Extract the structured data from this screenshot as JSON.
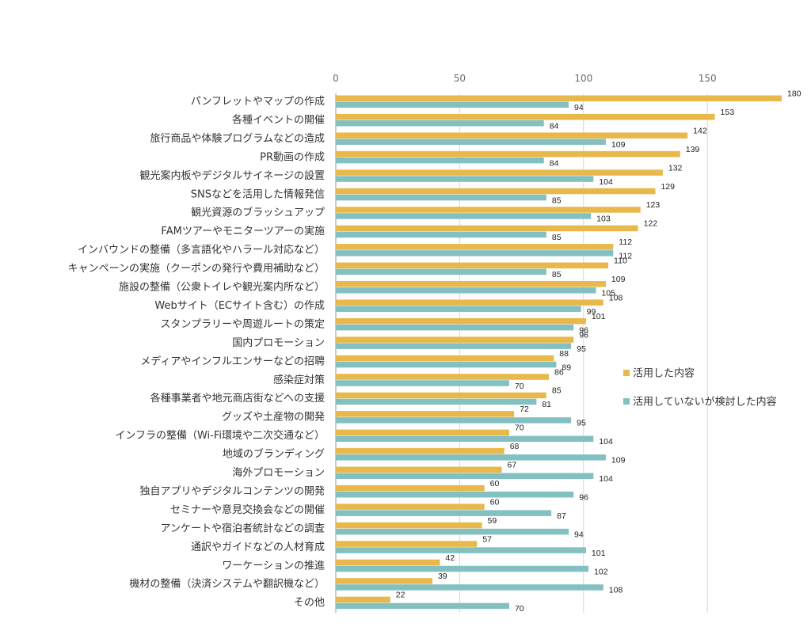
{
  "chart_data": {
    "type": "bar",
    "orientation": "horizontal",
    "xlim": [
      0,
      180
    ],
    "xticks": [
      0,
      50,
      100,
      150
    ],
    "grid": true,
    "legend_position": "right",
    "categories": [
      "パンフレットやマップの作成",
      "各種イベントの開催",
      "旅行商品や体験プログラムなどの造成",
      "PR動画の作成",
      "観光案内板やデジタルサイネージの設置",
      "SNSなどを活用した情報発信",
      "観光資源のブラッシュアップ",
      "FAMツアーやモニターツアーの実施",
      "インバウンドの整備（多言語化やハラール対応など）",
      "キャンペーンの実施（クーポンの発行や費用補助など）",
      "施設の整備（公衆トイレや観光案内所など）",
      "Webサイト（ECサイト含む）の作成",
      "スタンプラリーや周遊ルートの策定",
      "国内プロモーション",
      "メディアやインフルエンサーなどの招聘",
      "感染症対策",
      "各種事業者や地元商店街などへの支援",
      "グッズや土産物の開発",
      "インフラの整備（Wi-Fi環境や二次交通など）",
      "地域のブランディング",
      "海外プロモーション",
      "独自アプリやデジタルコンテンツの開発",
      "セミナーや意見交換会などの開催",
      "アンケートや宿泊者統計などの調査",
      "通訳やガイドなどの人材育成",
      "ワーケーションの推進",
      "機材の整備（決済システムや翻訳機など）",
      "その他"
    ],
    "series": [
      {
        "name": "活用した内容",
        "color": "#E8B84A",
        "values": [
          180,
          153,
          142,
          139,
          132,
          129,
          123,
          122,
          112,
          110,
          109,
          108,
          101,
          96,
          88,
          86,
          85,
          72,
          70,
          68,
          67,
          60,
          60,
          59,
          57,
          42,
          39,
          22
        ]
      },
      {
        "name": "活用していないが検討した内容",
        "color": "#82C0C2",
        "values": [
          94,
          84,
          109,
          84,
          104,
          85,
          103,
          85,
          112,
          85,
          105,
          99,
          96,
          95,
          89,
          70,
          81,
          95,
          104,
          109,
          104,
          96,
          87,
          94,
          101,
          102,
          108,
          70
        ]
      }
    ]
  }
}
